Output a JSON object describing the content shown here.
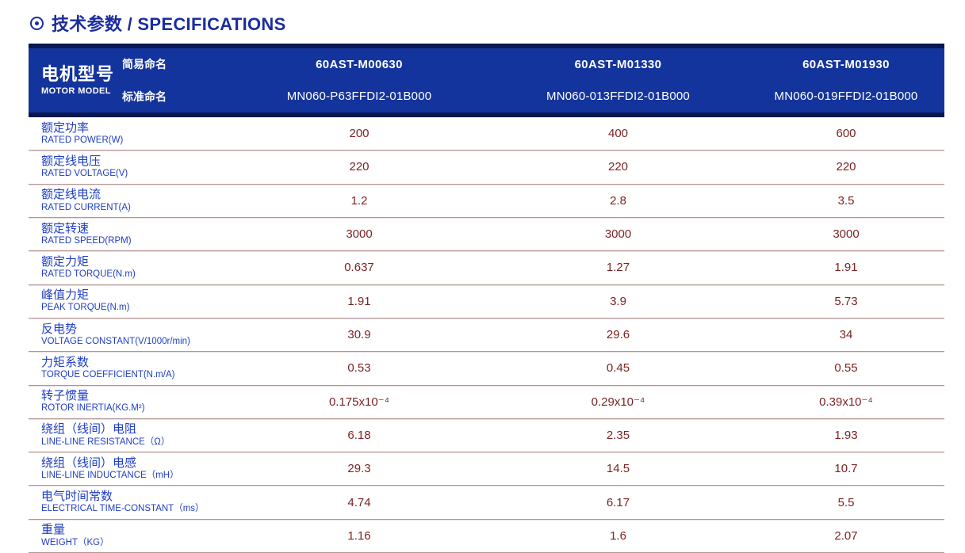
{
  "title": {
    "text": "技术参数 / SPECIFICATIONS"
  },
  "colors": {
    "title_blue": "#1b2d9e",
    "header_blue": "#14349d",
    "header_navy": "#0b1751",
    "label_blue": "#1f3ec4",
    "value_maroon": "#7b2322",
    "separator": "#b49595"
  },
  "table": {
    "header": {
      "motor_model_cn": "电机型号",
      "motor_model_en": "MOTOR MODEL",
      "simple_name_label": "简易命名",
      "standard_name_label": "标准命名",
      "columns": [
        {
          "model": "60AST-M00630",
          "standard": "MN060-P63FFDI2-01B000"
        },
        {
          "model": "60AST-M01330",
          "standard": "MN060-013FFDI2-01B000"
        },
        {
          "model": "60AST-M01930",
          "standard": "MN060-019FFDI2-01B000"
        }
      ]
    },
    "rows": [
      {
        "cn": "额定功率",
        "en": "RATED POWER(W)",
        "values": [
          "200",
          "400",
          "600"
        ]
      },
      {
        "cn": "额定线电压",
        "en": "RATED VOLTAGE(V)",
        "values": [
          "220",
          "220",
          "220"
        ]
      },
      {
        "cn": "额定线电流",
        "en": "RATED CURRENT(A)",
        "values": [
          "1.2",
          "2.8",
          "3.5"
        ]
      },
      {
        "cn": "额定转速",
        "en": "RATED SPEED(RPM)",
        "values": [
          "3000",
          "3000",
          "3000"
        ]
      },
      {
        "cn": "额定力矩",
        "en": "RATED TORQUE(N.m)",
        "values": [
          "0.637",
          "1.27",
          "1.91"
        ]
      },
      {
        "cn": "峰值力矩",
        "en": "PEAK TORQUE(N.m)",
        "values": [
          "1.91",
          "3.9",
          "5.73"
        ]
      },
      {
        "cn": "反电势",
        "en": "VOLTAGE CONSTANT(V/1000r/min)",
        "values": [
          "30.9",
          "29.6",
          "34"
        ]
      },
      {
        "cn": "力矩系数",
        "en": "TORQUE COEFFICIENT(N.m/A)",
        "values": [
          "0.53",
          "0.45",
          "0.55"
        ]
      },
      {
        "cn": "转子惯量",
        "en": "ROTOR INERTIA(KG.M²)",
        "values": [
          "0.175x10⁻⁴",
          "0.29x10⁻⁴",
          "0.39x10⁻⁴"
        ]
      },
      {
        "cn": "绕组（线间）电阻",
        "en": "LINE-LINE RESISTANCE（Ω）",
        "values": [
          "6.18",
          "2.35",
          "1.93"
        ]
      },
      {
        "cn": "绕组（线间）电感",
        "en": "LINE-LINE INDUCTANCE（mH）",
        "values": [
          "29.3",
          "14.5",
          "10.7"
        ]
      },
      {
        "cn": "电气时间常数",
        "en": "ELECTRICAL TIME-CONSTANT（ms）",
        "values": [
          "4.74",
          "6.17",
          "5.5"
        ]
      },
      {
        "cn": "重量",
        "en": "WEIGHT（KG）",
        "values": [
          "1.16",
          "1.6",
          "2.07"
        ]
      }
    ]
  }
}
